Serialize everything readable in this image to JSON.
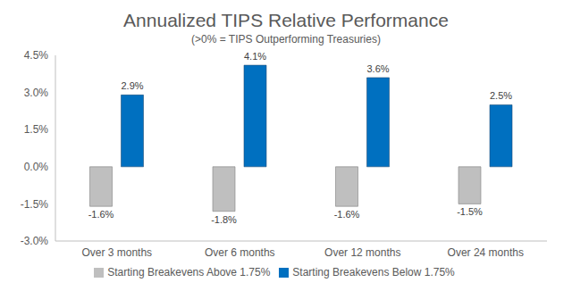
{
  "chart_data": {
    "type": "bar",
    "title": "Annualized TIPS Relative Performance",
    "subtitle": "(>0% = TIPS Outperforming Treasuries)",
    "categories": [
      "Over 3 months",
      "Over 6 months",
      "Over 12 months",
      "Over 24 months"
    ],
    "series": [
      {
        "name": "Starting Breakevens Above 1.75%",
        "color": "#bfbfbf",
        "values": [
          -1.6,
          -1.8,
          -1.6,
          -1.5
        ],
        "value_labels": [
          "-1.6%",
          "-1.8%",
          "-1.6%",
          "-1.5%"
        ]
      },
      {
        "name": "Starting Breakevens Below 1.75%",
        "color": "#0070c0",
        "values": [
          2.9,
          4.1,
          3.6,
          2.5
        ],
        "value_labels": [
          "2.9%",
          "4.1%",
          "3.6%",
          "2.5%"
        ]
      }
    ],
    "ylim": [
      -3,
      4.5
    ],
    "yticks": [
      {
        "value": -3,
        "label": "-3.0%"
      },
      {
        "value": -1.5,
        "label": "-1.5%"
      },
      {
        "value": 0,
        "label": "0.0%"
      },
      {
        "value": 1.5,
        "label": "1.5%"
      },
      {
        "value": 3,
        "label": "3.0%"
      },
      {
        "value": 4.5,
        "label": "4.5%"
      }
    ],
    "grid": false,
    "legend": "bottom",
    "data_labels": true
  }
}
